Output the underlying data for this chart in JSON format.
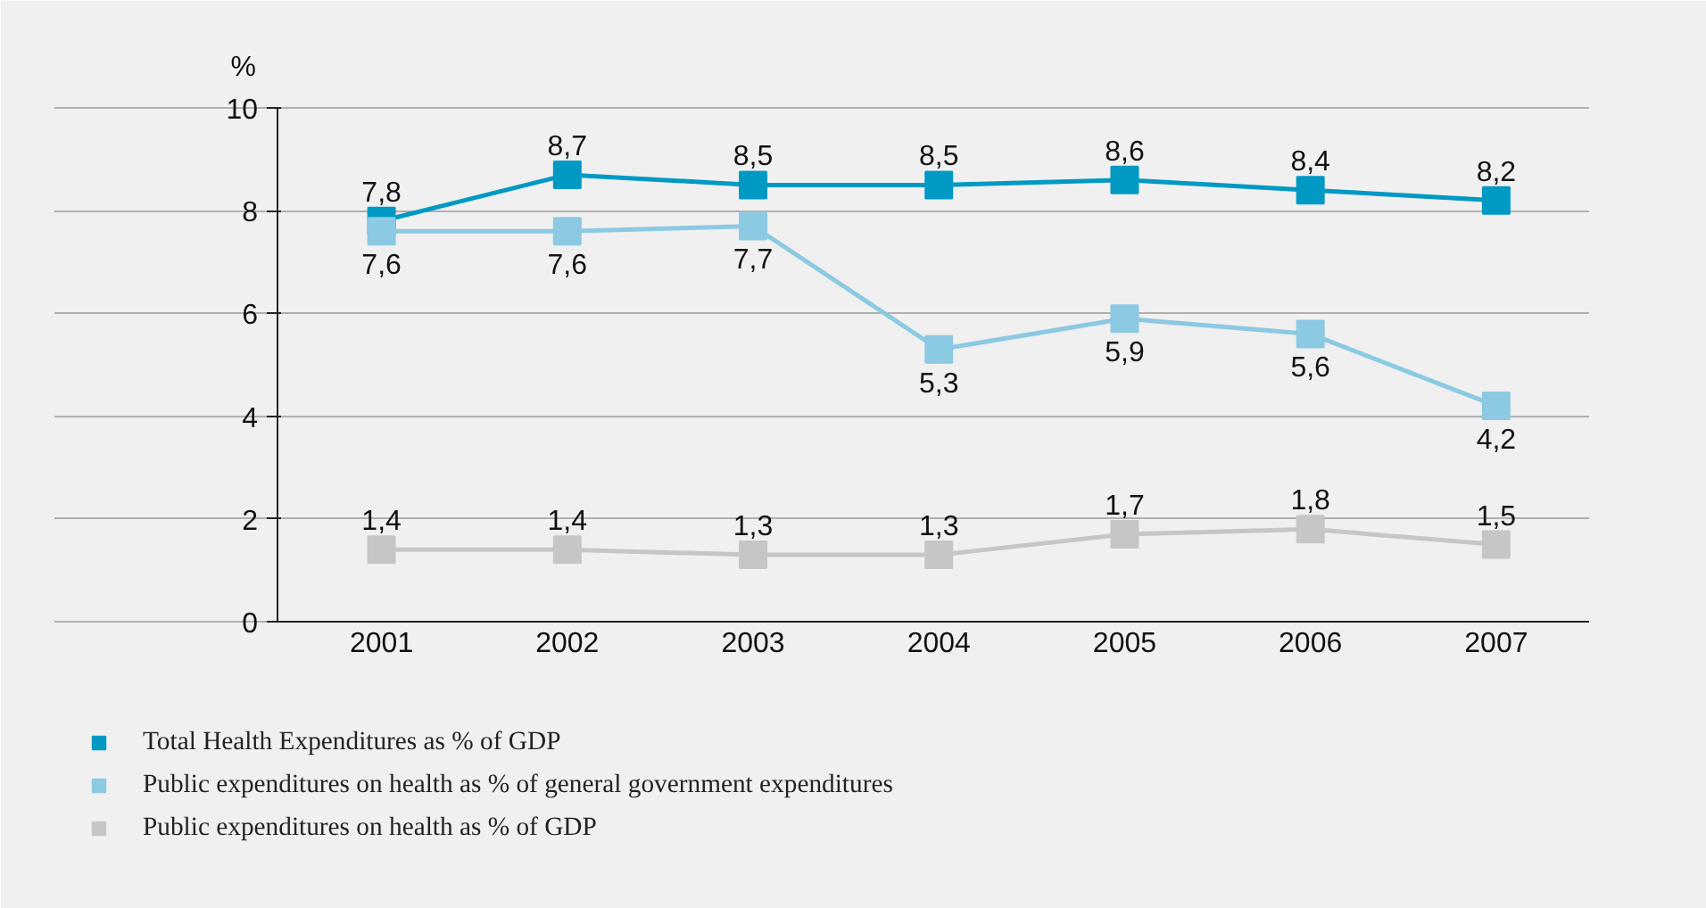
{
  "chart_data": {
    "type": "line",
    "ylabel": "%",
    "categories": [
      "2001",
      "2002",
      "2003",
      "2004",
      "2005",
      "2006",
      "2007"
    ],
    "ylim": [
      0,
      10
    ],
    "yticks": [
      0,
      2,
      4,
      6,
      8,
      10
    ],
    "grid": "y",
    "marker": "square",
    "line_style": "solid",
    "legend": "bottom",
    "series": [
      {
        "name": "Total Health Expenditures as % of GDP",
        "color": "#0099c4",
        "values": [
          7.8,
          8.7,
          8.5,
          8.5,
          8.6,
          8.4,
          8.2
        ],
        "value_labels": [
          "7,8",
          "8,7",
          "8,5",
          "8,5",
          "8,6",
          "8,4",
          "8,2"
        ]
      },
      {
        "name": "Public expenditures on health as % of general government expenditures",
        "color": "#8cc9e2",
        "values": [
          7.6,
          7.6,
          7.7,
          5.3,
          5.9,
          5.6,
          4.2
        ],
        "value_labels": [
          "7,6",
          "7,6",
          "7,7",
          "5,3",
          "5,9",
          "5,6",
          "4,2"
        ]
      },
      {
        "name": "Public expenditures on health as % of GDP",
        "color": "#c6c6c6",
        "values": [
          1.4,
          1.4,
          1.3,
          1.3,
          1.7,
          1.8,
          1.5
        ],
        "value_labels": [
          "1,4",
          "1,4",
          "1,3",
          "1,3",
          "1,7",
          "1,8",
          "1,5"
        ]
      }
    ]
  }
}
